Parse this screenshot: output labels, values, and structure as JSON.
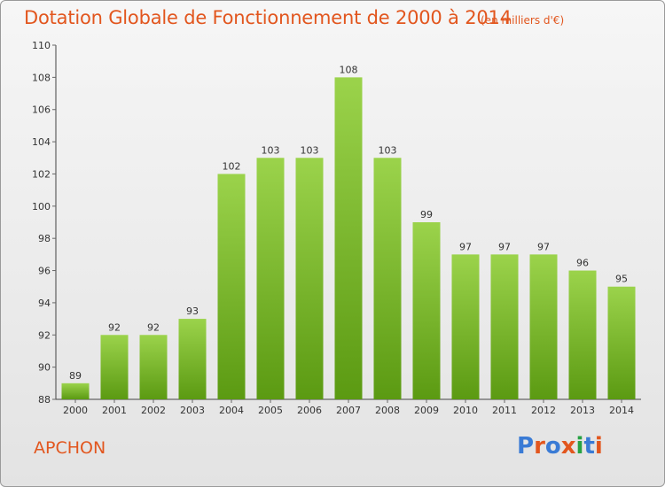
{
  "title": "Dotation Globale de Fonctionnement de 2000 à 2014",
  "subtitle": "(en milliers d'€)",
  "commune": "APCHON",
  "logo": {
    "text": "Proxiti",
    "colors": [
      "#3a7bd5",
      "#e2561e",
      "#3a7bd5",
      "#e2561e",
      "#27a243",
      "#3a7bd5",
      "#e2561e"
    ]
  },
  "colors": {
    "bar_top": "#9bd34b",
    "bar_bottom": "#5b9a12",
    "axis": "#444444",
    "grid_tick": "#666666"
  },
  "chart_data": {
    "type": "bar",
    "categories": [
      "2000",
      "2001",
      "2002",
      "2003",
      "2004",
      "2005",
      "2006",
      "2007",
      "2008",
      "2009",
      "2010",
      "2011",
      "2012",
      "2013",
      "2014"
    ],
    "values": [
      89,
      92,
      92,
      93,
      102,
      103,
      103,
      108,
      103,
      99,
      97,
      97,
      97,
      96,
      95
    ],
    "ylim": [
      88,
      110
    ],
    "yticks": [
      88,
      90,
      92,
      94,
      96,
      98,
      100,
      102,
      104,
      106,
      108,
      110
    ],
    "xlabel": "",
    "ylabel": "",
    "grid": false
  }
}
